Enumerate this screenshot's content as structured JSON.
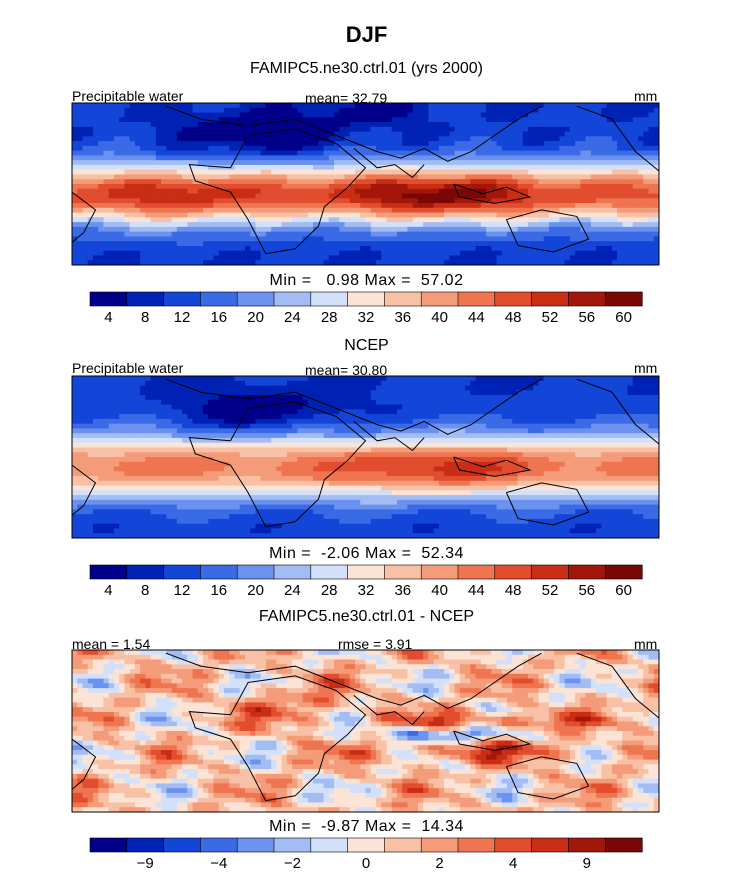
{
  "figure": {
    "title": "DJF"
  },
  "chart_data": [
    {
      "type": "heatmap",
      "title": "FAMIPC5.ne30.ctrl.01 (yrs 2000)",
      "left_label": "Precipitable water",
      "center_label": "mean=  32.79",
      "right_label": "mm",
      "minmax": "Min =   0.98 Max =  57.02",
      "colorbar_ticks": [
        "4",
        "8",
        "12",
        "16",
        "20",
        "24",
        "28",
        "32",
        "36",
        "40",
        "44",
        "48",
        "52",
        "56",
        "60"
      ],
      "colors": [
        "#00008b",
        "#0022b4",
        "#1346d8",
        "#3a6ae6",
        "#6b92ee",
        "#a3bdf4",
        "#d2e0fa",
        "#fbe4d6",
        "#f8c1a6",
        "#f49c7a",
        "#ee7550",
        "#e24d2e",
        "#c92d14",
        "#a3170a",
        "#7a0606"
      ],
      "field": "model"
    },
    {
      "type": "heatmap",
      "title": "NCEP",
      "left_label": "Precipitable water",
      "center_label": "mean=  30.80",
      "right_label": "mm",
      "minmax": "Min =  -2.06 Max =  52.34",
      "colorbar_ticks": [
        "4",
        "8",
        "12",
        "16",
        "20",
        "24",
        "28",
        "32",
        "36",
        "40",
        "44",
        "48",
        "52",
        "56",
        "60"
      ],
      "colors": [
        "#00008b",
        "#0022b4",
        "#1346d8",
        "#3a6ae6",
        "#6b92ee",
        "#a3bdf4",
        "#d2e0fa",
        "#fbe4d6",
        "#f8c1a6",
        "#f49c7a",
        "#ee7550",
        "#e24d2e",
        "#c92d14",
        "#a3170a",
        "#7a0606"
      ],
      "field": "obs"
    },
    {
      "type": "heatmap",
      "title": "FAMIPC5.ne30.ctrl.01 - NCEP",
      "left_label": "mean =   1.54",
      "center_label": "rmse =   3.91",
      "right_label": "mm",
      "minmax": "Min =  -9.87 Max =  14.34",
      "colorbar_ticks": [
        "−9",
        "−4",
        "−2",
        "0",
        "2",
        "4",
        "9"
      ],
      "colors": [
        "#00008b",
        "#0022b4",
        "#1346d8",
        "#3a6ae6",
        "#6b92ee",
        "#a3bdf4",
        "#d2e0fa",
        "#fbe4d6",
        "#f8c1a6",
        "#f49c7a",
        "#ee7550",
        "#e24d2e",
        "#c92d14",
        "#a3170a",
        "#7a0606"
      ],
      "field": "diff"
    }
  ]
}
